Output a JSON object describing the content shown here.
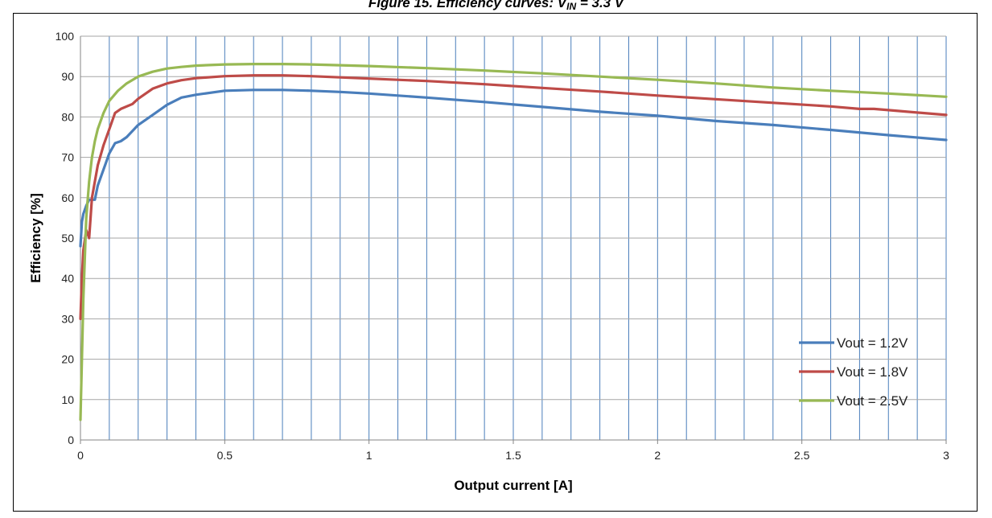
{
  "title_main": "Figure 15. Efficiency curves: V",
  "title_sub": "IN",
  "title_tail": " = 3.3 V",
  "chart_data": {
    "type": "line",
    "title": "Figure 15. Efficiency curves: VIN = 3.3 V",
    "xlabel": "Output current [A]",
    "ylabel": "Efficiency [%]",
    "xlim": [
      0,
      3
    ],
    "ylim": [
      0,
      100
    ],
    "x_ticks": [
      "0",
      "0.5",
      "1",
      "1.5",
      "2",
      "2.5",
      "3"
    ],
    "x_tick_values": [
      0,
      0.5,
      1,
      1.5,
      2,
      2.5,
      3
    ],
    "y_ticks": [
      "0",
      "10",
      "20",
      "30",
      "40",
      "50",
      "60",
      "70",
      "80",
      "90",
      "100"
    ],
    "y_tick_values": [
      0,
      10,
      20,
      30,
      40,
      50,
      60,
      70,
      80,
      90,
      100
    ],
    "vertical_grid_step": 0.1,
    "horizontal_grid": true,
    "legend_position": "bottom-right",
    "series": [
      {
        "name": "Vout = 1.2V",
        "color": "#4a7ebb",
        "x": [
          0,
          0.005,
          0.01,
          0.02,
          0.03,
          0.04,
          0.05,
          0.06,
          0.08,
          0.1,
          0.12,
          0.14,
          0.16,
          0.2,
          0.25,
          0.3,
          0.35,
          0.4,
          0.5,
          0.6,
          0.7,
          0.8,
          0.9,
          1.0,
          1.2,
          1.4,
          1.6,
          1.8,
          2.0,
          2.2,
          2.4,
          2.6,
          2.8,
          3.0
        ],
        "y": [
          48,
          54,
          56,
          58,
          59.5,
          59.5,
          59.5,
          63,
          67,
          71,
          73.5,
          74,
          75,
          78,
          80.5,
          83,
          84.8,
          85.5,
          86.5,
          86.7,
          86.7,
          86.5,
          86.2,
          85.8,
          84.8,
          83.7,
          82.5,
          81.3,
          80.3,
          79,
          78,
          76.8,
          75.5,
          74.3
        ]
      },
      {
        "name": "Vout = 1.8V",
        "color": "#be4b48",
        "x": [
          0,
          0.005,
          0.01,
          0.02,
          0.03,
          0.04,
          0.06,
          0.08,
          0.1,
          0.12,
          0.14,
          0.18,
          0.2,
          0.25,
          0.3,
          0.35,
          0.4,
          0.5,
          0.6,
          0.7,
          0.8,
          1.0,
          1.2,
          1.4,
          1.6,
          1.8,
          2.0,
          2.2,
          2.4,
          2.6,
          2.7,
          2.75,
          2.8,
          3.0
        ],
        "y": [
          30,
          40,
          47,
          52,
          50,
          60,
          68,
          73,
          77,
          81,
          82,
          83.2,
          84.5,
          87,
          88.3,
          89.1,
          89.6,
          90.1,
          90.3,
          90.3,
          90.1,
          89.5,
          88.9,
          88.1,
          87.2,
          86.3,
          85.3,
          84.4,
          83.5,
          82.6,
          82,
          82,
          81.7,
          80.5
        ]
      },
      {
        "name": "Vout = 2.5V",
        "color": "#98b954",
        "x": [
          0,
          0.005,
          0.01,
          0.015,
          0.02,
          0.03,
          0.04,
          0.05,
          0.06,
          0.08,
          0.1,
          0.13,
          0.16,
          0.2,
          0.25,
          0.3,
          0.35,
          0.4,
          0.5,
          0.6,
          0.7,
          0.8,
          1.0,
          1.2,
          1.4,
          1.6,
          1.8,
          2.0,
          2.2,
          2.4,
          2.6,
          2.8,
          3.0
        ],
        "y": [
          5,
          20,
          35,
          45,
          55,
          64,
          70,
          74,
          77,
          81,
          84,
          86.5,
          88.3,
          90,
          91.2,
          92,
          92.4,
          92.7,
          93,
          93.1,
          93.1,
          93,
          92.6,
          92.1,
          91.5,
          90.8,
          90,
          89.2,
          88.3,
          87.3,
          86.5,
          85.8,
          85
        ]
      }
    ]
  }
}
